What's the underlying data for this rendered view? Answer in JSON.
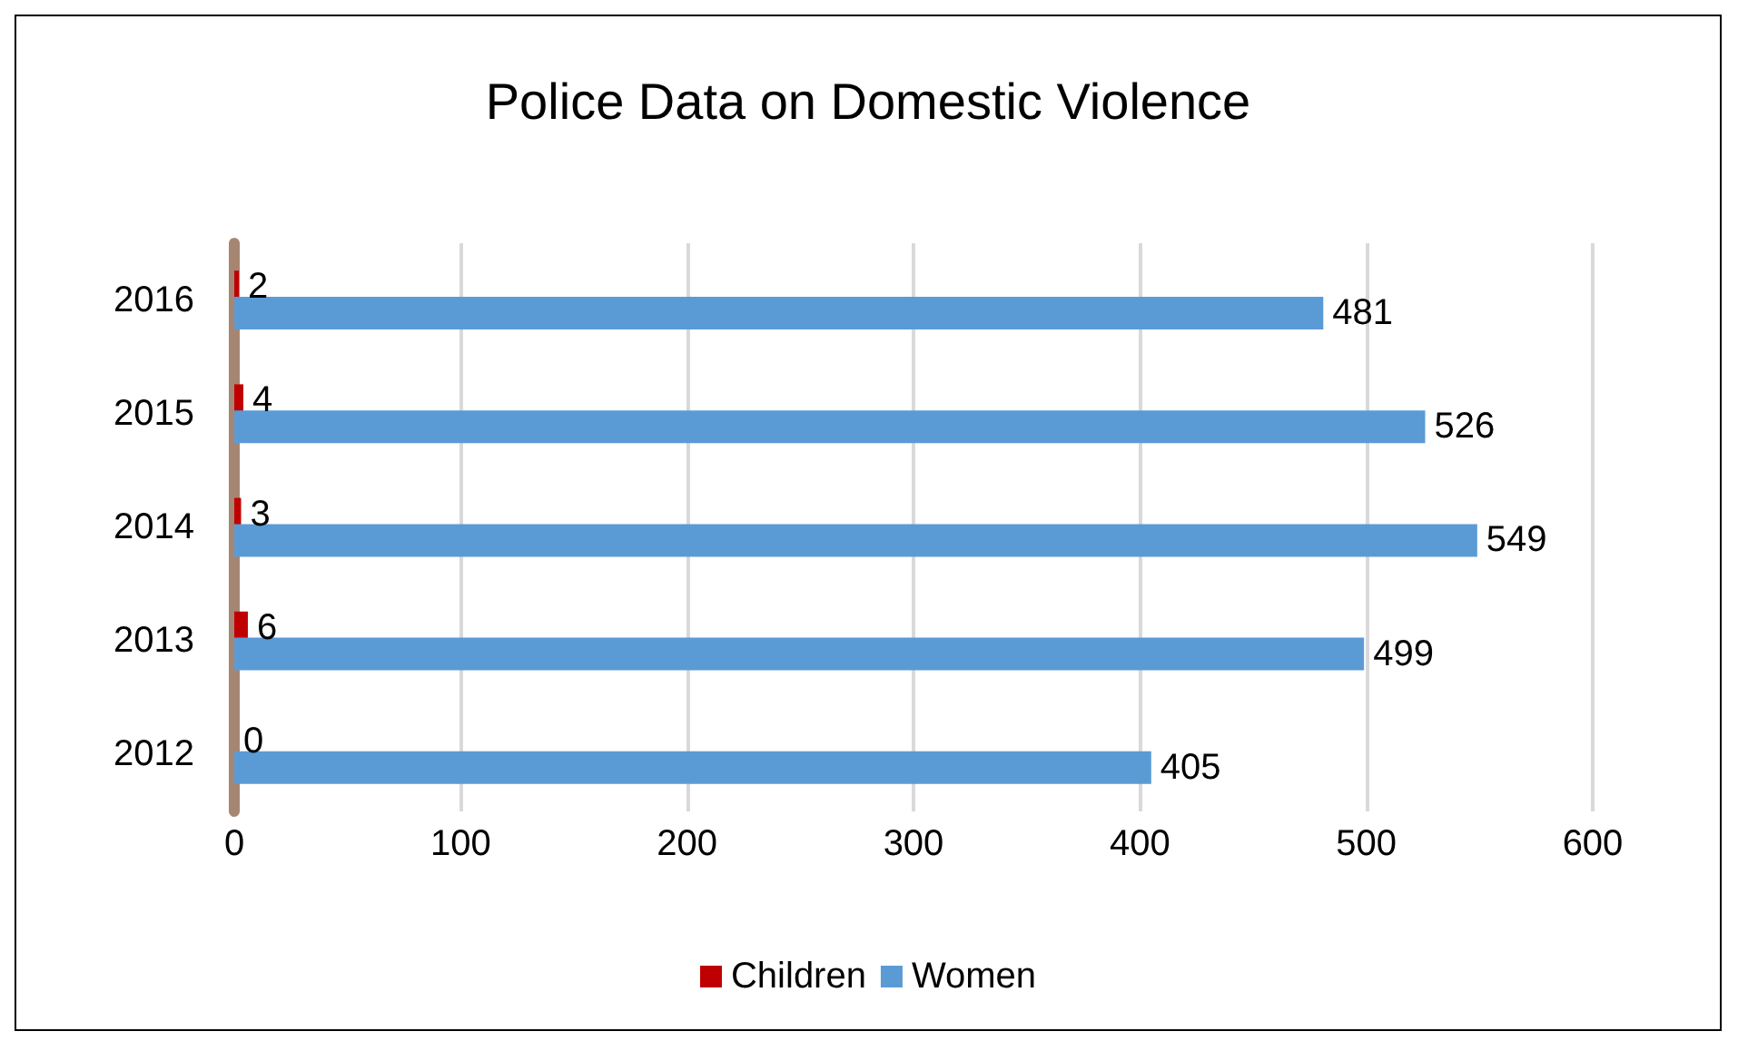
{
  "chart_data": {
    "type": "bar",
    "orientation": "horizontal",
    "title": "Police Data on Domestic Violence",
    "categories": [
      "2016",
      "2015",
      "2014",
      "2013",
      "2012"
    ],
    "series": [
      {
        "name": "Children",
        "color": "#c00000",
        "values": [
          2,
          4,
          3,
          6,
          0
        ]
      },
      {
        "name": "Women",
        "color": "#5b9bd5",
        "values": [
          481,
          526,
          549,
          499,
          405
        ]
      }
    ],
    "xlim": [
      0,
      600
    ],
    "xticks": [
      0,
      100,
      200,
      300,
      400,
      500,
      600
    ],
    "grid": "x",
    "legend": "bottom",
    "data_labels": true
  }
}
